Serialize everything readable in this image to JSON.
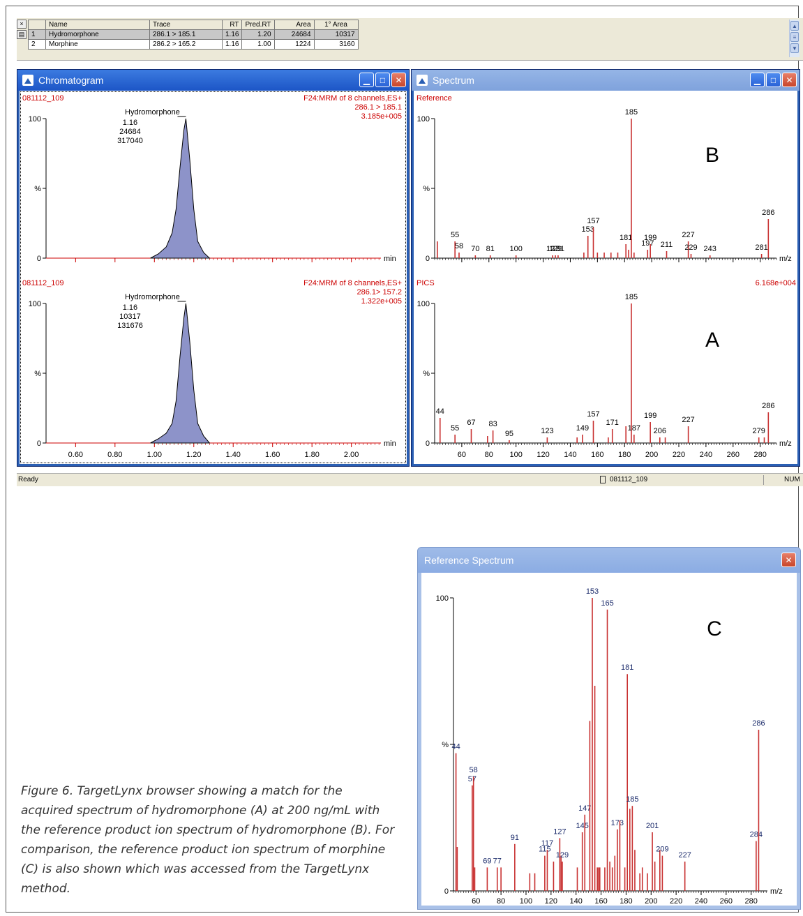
{
  "table": {
    "headers": [
      "Name",
      "Trace",
      "RT",
      "Pred.RT",
      "Area",
      "1° Area"
    ],
    "rows": [
      {
        "index": "1",
        "name": "Hydromorphone",
        "trace": "286.1 > 185.1",
        "rt": "1.16",
        "pred_rt": "1.20",
        "area": "24684",
        "area1": "10317"
      },
      {
        "index": "2",
        "name": "Morphine",
        "trace": "286.2 > 165.2",
        "rt": "1.16",
        "pred_rt": "1.00",
        "area": "1224",
        "area1": "3160"
      }
    ]
  },
  "chromatogram_window": {
    "title": "Chromatogram",
    "panels": [
      {
        "file": "081112_109",
        "header": "F24:MRM of 8 channels,ES+",
        "trace": "286.1 > 185.1",
        "intensity": "3.185e+005",
        "peak_name": "Hydromorphone",
        "peak_rt": "1.16",
        "peak_area": "24684",
        "peak_height": "317040"
      },
      {
        "file": "081112_109",
        "header": "F24:MRM of 8 channels,ES+",
        "trace": "286.1> 157.2",
        "intensity": "1.322e+005",
        "peak_name": "Hydromorphone",
        "peak_rt": "1.16",
        "peak_area": "10317",
        "peak_height": "131676"
      }
    ],
    "y_labels": [
      "100",
      "%",
      "0"
    ],
    "x_unit": "min",
    "x_ticks": [
      "0.60",
      "0.80",
      "1.00",
      "1.20",
      "1.40",
      "1.60",
      "1.80",
      "2.00"
    ]
  },
  "spectrum_window": {
    "title": "Spectrum",
    "x_unit": "m/z",
    "x_ticks": [
      "60",
      "80",
      "100",
      "120",
      "140",
      "160",
      "180",
      "200",
      "220",
      "240",
      "260",
      "280"
    ],
    "panels": [
      {
        "label": "Reference",
        "letter": "B",
        "intensity": ""
      },
      {
        "label": "PICS",
        "letter": "A",
        "intensity": "6.168e+004"
      }
    ]
  },
  "status_bar": {
    "status": "Ready",
    "file": "081112_109",
    "mode": "NUM"
  },
  "reference_window": {
    "title": "Reference Spectrum",
    "letter": "C"
  },
  "caption": "Figure 6. TargetLynx browser showing a match for the acquired spectrum of hydromorphone (A) at 200 ng/mL with the reference product ion spectrum of hydromorphone (B). For comparison, the reference product ion spectrum of morphine (C) is also shown which was accessed from the TargetLynx method.",
  "chart_data": [
    {
      "type": "area",
      "title": "F24:MRM of 8 channels,ES+ 286.1 > 185.1",
      "xlabel": "min",
      "ylabel": "%",
      "xlim": [
        0.45,
        2.15
      ],
      "ylim": [
        0,
        100
      ],
      "x": [
        0.98,
        1.02,
        1.06,
        1.09,
        1.11,
        1.13,
        1.15,
        1.16,
        1.18,
        1.2,
        1.22,
        1.25,
        1.28
      ],
      "values": [
        0,
        3,
        8,
        18,
        35,
        65,
        92,
        100,
        70,
        35,
        12,
        4,
        0
      ]
    },
    {
      "type": "area",
      "title": "F24:MRM of 8 channels,ES+ 286.1> 157.2",
      "xlabel": "min",
      "ylabel": "%",
      "xlim": [
        0.45,
        2.15
      ],
      "ylim": [
        0,
        100
      ],
      "x": [
        0.98,
        1.02,
        1.06,
        1.09,
        1.11,
        1.13,
        1.15,
        1.16,
        1.18,
        1.2,
        1.22,
        1.25,
        1.28
      ],
      "values": [
        0,
        3,
        7,
        14,
        30,
        62,
        90,
        100,
        72,
        38,
        14,
        5,
        0
      ]
    },
    {
      "type": "bar",
      "title": "Reference",
      "xlabel": "m/z",
      "ylabel": "%",
      "xlim": [
        40,
        292
      ],
      "ylim": [
        0,
        100
      ],
      "x": [
        42,
        55,
        58,
        70,
        81,
        100,
        127,
        129,
        131,
        150,
        153,
        157,
        160,
        165,
        170,
        175,
        181,
        183,
        185,
        187,
        197,
        199,
        211,
        227,
        229,
        243,
        281,
        286
      ],
      "values": [
        12,
        12,
        4,
        2,
        2,
        2,
        2,
        2,
        2,
        4,
        16,
        22,
        4,
        4,
        4,
        4,
        10,
        6,
        100,
        4,
        6,
        10,
        5,
        12,
        3,
        2,
        3,
        28
      ],
      "labels": {
        "55": "55",
        "58": "58",
        "70": "70",
        "81": "81",
        "100": "100",
        "127": "127",
        "129": "129",
        "131": "131",
        "153": "153",
        "157": "157",
        "181": "181",
        "185": "185",
        "197": "197",
        "199": "199",
        "211": "211",
        "227": "227",
        "229": "229",
        "243": "243",
        "281": "281",
        "286": "286"
      }
    },
    {
      "type": "bar",
      "title": "PICS",
      "xlabel": "m/z",
      "ylabel": "%",
      "xlim": [
        40,
        292
      ],
      "ylim": [
        0,
        100
      ],
      "x": [
        44,
        55,
        67,
        79,
        83,
        95,
        123,
        145,
        149,
        157,
        168,
        171,
        181,
        185,
        187,
        199,
        206,
        210,
        227,
        279,
        283,
        286
      ],
      "values": [
        18,
        6,
        10,
        5,
        9,
        2,
        4,
        4,
        6,
        16,
        4,
        10,
        12,
        100,
        6,
        15,
        4,
        4,
        12,
        4,
        4,
        22
      ],
      "labels": {
        "44": "44",
        "55": "55",
        "67": "67",
        "83": "83",
        "95": "95",
        "123": "123",
        "149": "149",
        "157": "157",
        "171": "171",
        "185": "185",
        "187": "187",
        "199": "199",
        "206": "206",
        "227": "227",
        "279": "279",
        "286": "286"
      }
    },
    {
      "type": "bar",
      "title": "Reference Spectrum",
      "xlabel": "m/z",
      "ylabel": "%",
      "xlim": [
        42,
        293
      ],
      "ylim": [
        0,
        100
      ],
      "x": [
        44,
        45,
        57,
        58,
        59,
        69,
        77,
        80,
        91,
        103,
        107,
        115,
        117,
        122,
        127,
        128,
        129,
        141,
        145,
        147,
        151,
        153,
        155,
        157,
        158,
        159,
        163,
        165,
        167,
        169,
        171,
        173,
        175,
        179,
        181,
        183,
        185,
        187,
        191,
        193,
        197,
        201,
        203,
        207,
        209,
        227,
        284,
        286
      ],
      "values": [
        47,
        15,
        36,
        39,
        8,
        8,
        8,
        8,
        16,
        6,
        6,
        12,
        14,
        10,
        18,
        12,
        10,
        8,
        20,
        26,
        58,
        100,
        70,
        8,
        8,
        8,
        8,
        96,
        10,
        8,
        12,
        21,
        24,
        8,
        74,
        28,
        29,
        14,
        6,
        8,
        6,
        20,
        10,
        14,
        12,
        10,
        17,
        55
      ],
      "labels": {
        "44": "44",
        "57": "57",
        "58": "58",
        "69": "69",
        "77": "77",
        "91": "91",
        "115": "115",
        "117": "117",
        "127": "127",
        "129": "129",
        "145": "145",
        "147": "147",
        "153": "153",
        "165": "165",
        "173": "173",
        "181": "181",
        "185": "185",
        "201": "201",
        "209": "209",
        "227": "227",
        "284": "284",
        "286": "286"
      }
    }
  ]
}
